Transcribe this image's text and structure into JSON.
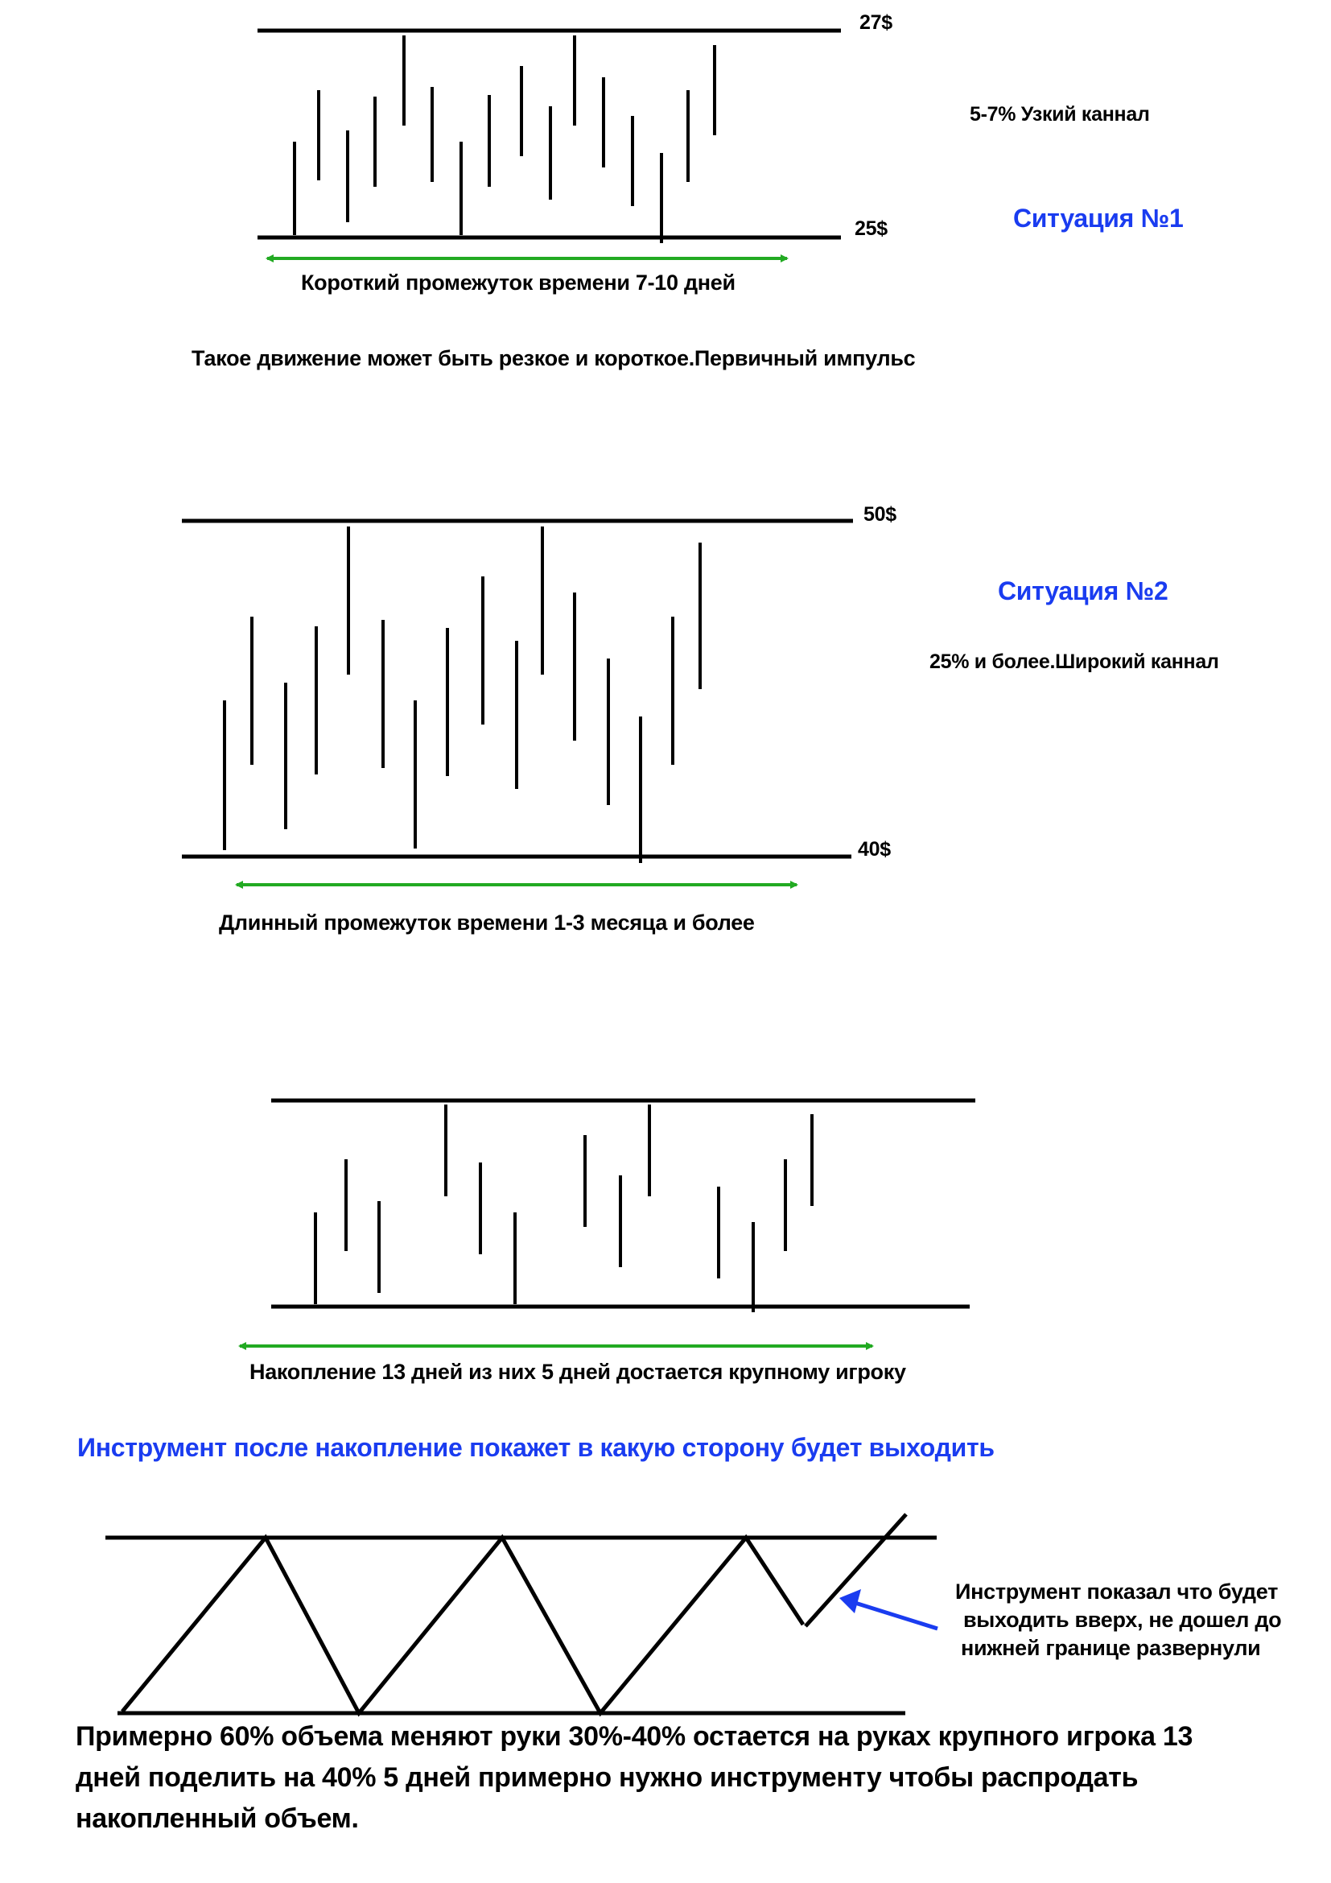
{
  "colors": {
    "line": "#000000",
    "arrow_green": "#22aa22",
    "blue": "#1a3cf0"
  },
  "situation1": {
    "top_price": "27$",
    "bottom_price": "25$",
    "channel_label": "5-7% Узкий каннал",
    "title": "Ситуация №1",
    "arrow_label": "Короткий промежуток времени 7-10 дней",
    "note": "Такое движение может быть резкое  и короткое.Первичный импульс"
  },
  "situation2": {
    "top_price": "50$",
    "bottom_price": "40$",
    "title": "Ситуация №2",
    "channel_label": "25% и более.Широкий  каннал",
    "arrow_label": "Длинный  промежуток времени 1-3 месяца и более"
  },
  "accumulation": {
    "arrow_label": "Накопление 13 дней из них 5 дней достается крупному игроку"
  },
  "breakout": {
    "heading": "Инструмент после накопление  покажет в какую сторону будет выходить",
    "annotation_lines": [
      "Инструмент показал что будет",
      "выходить вверх, не дошел до",
      "нижней границе развернули"
    ]
  },
  "summary": "Примерно 60% объема меняют руки 30%-40% остается на руках крупного игрока 13 дней поделить на 40%  5 дней примерно нужно инструменту чтобы распродать накопленный объем."
}
